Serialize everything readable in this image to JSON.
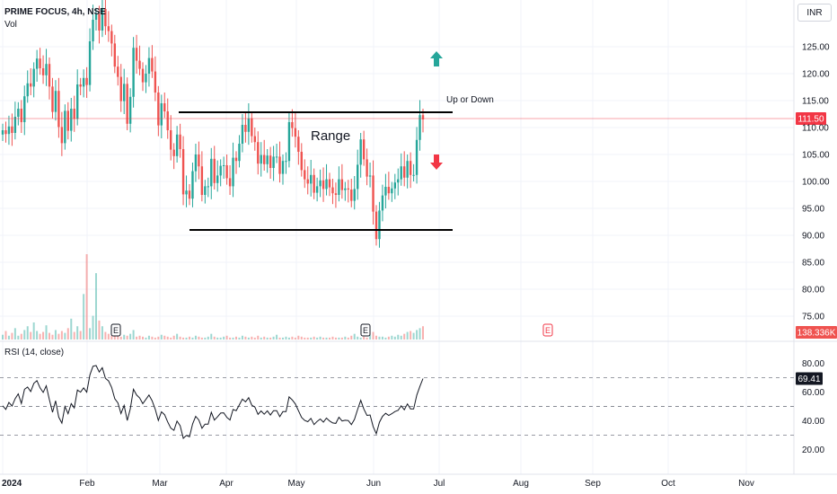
{
  "header": {
    "symbol": "PRIME FOCUS, 4h, NSE",
    "volume_label": "Vol",
    "currency": "INR",
    "rsi_label": "RSI (14, close)"
  },
  "annotations": {
    "range_label": "Range",
    "up_or_down_label": "Up or Down",
    "up_arrow_color": "#26a69a",
    "down_arrow_color": "#f23645",
    "earnings_marker": "E"
  },
  "colors": {
    "up": "#26a69a",
    "down": "#ef5350",
    "last_price": "#f23645",
    "rsi_line": "#131722"
  },
  "chart_data": [
    {
      "type": "candlestick",
      "price_axis": {
        "ticks": [
          "125.00",
          "120.00",
          "115.00",
          "110.00",
          "105.00",
          "100.00",
          "95.00",
          "90.00",
          "85.00",
          "80.00",
          "75.00"
        ],
        "range": [
          73,
          130
        ]
      },
      "last_price_label": "111.50",
      "last_price": 111.5,
      "volume_label": "138.336K",
      "range_lines": [
        {
          "price": 112.6,
          "from": "Mar",
          "to": "Jul"
        },
        {
          "price": 90.9,
          "from": "Mar",
          "to": "Jul"
        }
      ],
      "x_axis": {
        "labels": [
          "2024",
          "Feb",
          "Mar",
          "Apr",
          "May",
          "Jun",
          "Jul",
          "Aug",
          "Sep",
          "Oct",
          "Nov"
        ]
      },
      "earnings_markers": [
        "Feb",
        "Jun",
        "Aug"
      ],
      "close_series": [
        109.5,
        108.8,
        110.2,
        109.0,
        112.0,
        113.5,
        111.0,
        115.8,
        118.2,
        117.6,
        120.9,
        122.8,
        121.0,
        119.7,
        121.8,
        117.6,
        112.9,
        116.8,
        110.1,
        107.1,
        113.1,
        109.4,
        113.5,
        111.6,
        118.0,
        117.6,
        119.2,
        117.9,
        126.0,
        130.0,
        131.0,
        128.0,
        132.0,
        128.8,
        127.9,
        125.6,
        121.3,
        119.4,
        114.9,
        118.1,
        110.7,
        115.7,
        124.8,
        122.4,
        120.9,
        118.4,
        120.0,
        122.9,
        120.4,
        116.5,
        110.4,
        114.5,
        113.0,
        109.5,
        105.9,
        104.7,
        108.7,
        106.0,
        97.6,
        98.3,
        96.8,
        101.9,
        105.0,
        102.8,
        97.5,
        99.1,
        99.1,
        104.2,
        99.7,
        101.1,
        102.9,
        103.0,
        100.6,
        99.1,
        104.4,
        103.8,
        107.0,
        110.5,
        109.2,
        111.7,
        108.4,
        107.3,
        103.3,
        104.9,
        103.2,
        104.8,
        102.5,
        104.6,
        104.6,
        101.4,
        103.8,
        103.8,
        111.0,
        109.9,
        108.3,
        105.5,
        102.1,
        100.4,
        99.6,
        101.2,
        97.9,
        99.1,
        100.2,
        98.6,
        100.4,
        98.9,
        97.8,
        97.5,
        100.4,
        98.4,
        98.7,
        98.5,
        96.4,
        98.6,
        103.1,
        107.8,
        104.1,
        100.9,
        101.1,
        94.4,
        89.3,
        94.6,
        97.4,
        99.0,
        97.8,
        98.7,
        99.8,
        100.4,
        102.8,
        100.7,
        103.8,
        101.2,
        101.2,
        107.7,
        112.3,
        111.5
      ],
      "volume_series": [
        5,
        9,
        4,
        7,
        12,
        4,
        6,
        10,
        14,
        8,
        18,
        9,
        6,
        8,
        15,
        7,
        5,
        10,
        6,
        9,
        7,
        12,
        22,
        8,
        14,
        9,
        48,
        90,
        12,
        25,
        70,
        20,
        14,
        8,
        6,
        4,
        9,
        4,
        3,
        5,
        4,
        6,
        10,
        3,
        4,
        3,
        2,
        4,
        3,
        2,
        3,
        5,
        4,
        3,
        2,
        4,
        6,
        3,
        2,
        2,
        3,
        2,
        4,
        3,
        2,
        2,
        3,
        6,
        3,
        2,
        2,
        3,
        4,
        2,
        2,
        3,
        2,
        4,
        3,
        2,
        3,
        2,
        4,
        2,
        3,
        2,
        2,
        3,
        5,
        2,
        2,
        3,
        2,
        3,
        2,
        4,
        3,
        2,
        2,
        2,
        3,
        2,
        3,
        2,
        2,
        2,
        3,
        2,
        2,
        2,
        3,
        2,
        4,
        6,
        3,
        2,
        3,
        2,
        5,
        8,
        4,
        3,
        3,
        2,
        3,
        4,
        3,
        5,
        4,
        6,
        8,
        9,
        7,
        10,
        12,
        14
      ]
    },
    {
      "type": "line",
      "name": "RSI (14, close)",
      "y_axis": {
        "ticks": [
          "80.00",
          "60.00",
          "40.00",
          "20.00"
        ],
        "range": [
          10,
          90
        ]
      },
      "bands": [
        70,
        50,
        30
      ],
      "last_value_label": "69.41",
      "last_value": 69.41,
      "values": [
        50.5,
        48.0,
        52.8,
        50.3,
        55.5,
        58.8,
        52.1,
        62.0,
        63.5,
        60.4,
        66.1,
        68.0,
        63.0,
        59.8,
        64.4,
        54.7,
        46.0,
        54.0,
        42.6,
        38.4,
        50.0,
        45.0,
        52.0,
        49.0,
        61.5,
        60.0,
        63.0,
        60.0,
        72.0,
        78.0,
        78.5,
        74.0,
        77.0,
        69.6,
        67.8,
        63.3,
        55.4,
        52.5,
        45.1,
        50.7,
        40.3,
        48.4,
        62.0,
        58.0,
        56.0,
        52.0,
        55.0,
        58.0,
        54.0,
        48.0,
        40.3,
        46.3,
        44.3,
        39.3,
        34.9,
        33.4,
        39.8,
        36.6,
        27.8,
        29.8,
        28.9,
        37.9,
        43.1,
        40.6,
        34.8,
        37.7,
        37.7,
        46.0,
        40.5,
        42.8,
        45.4,
        45.6,
        42.4,
        40.6,
        47.9,
        47.1,
        51.1,
        55.1,
        53.2,
        56.1,
        51.0,
        49.6,
        44.5,
        46.9,
        44.6,
        47.0,
        44.0,
        47.1,
        47.1,
        42.9,
        46.4,
        46.4,
        56.7,
        54.6,
        51.7,
        47.1,
        42.4,
        40.3,
        39.4,
        41.7,
        37.4,
        39.6,
        41.3,
        39.1,
        41.9,
        39.9,
        38.5,
        38.2,
        42.5,
        39.9,
        40.4,
        40.2,
        37.4,
        41.0,
        47.9,
        54.3,
        48.3,
        43.8,
        44.1,
        36.0,
        31.0,
        39.0,
        43.1,
        45.2,
        43.8,
        45.0,
        46.5,
        47.3,
        50.5,
        47.7,
        51.8,
        48.3,
        48.3,
        57.9,
        63.9,
        69.41
      ]
    }
  ]
}
